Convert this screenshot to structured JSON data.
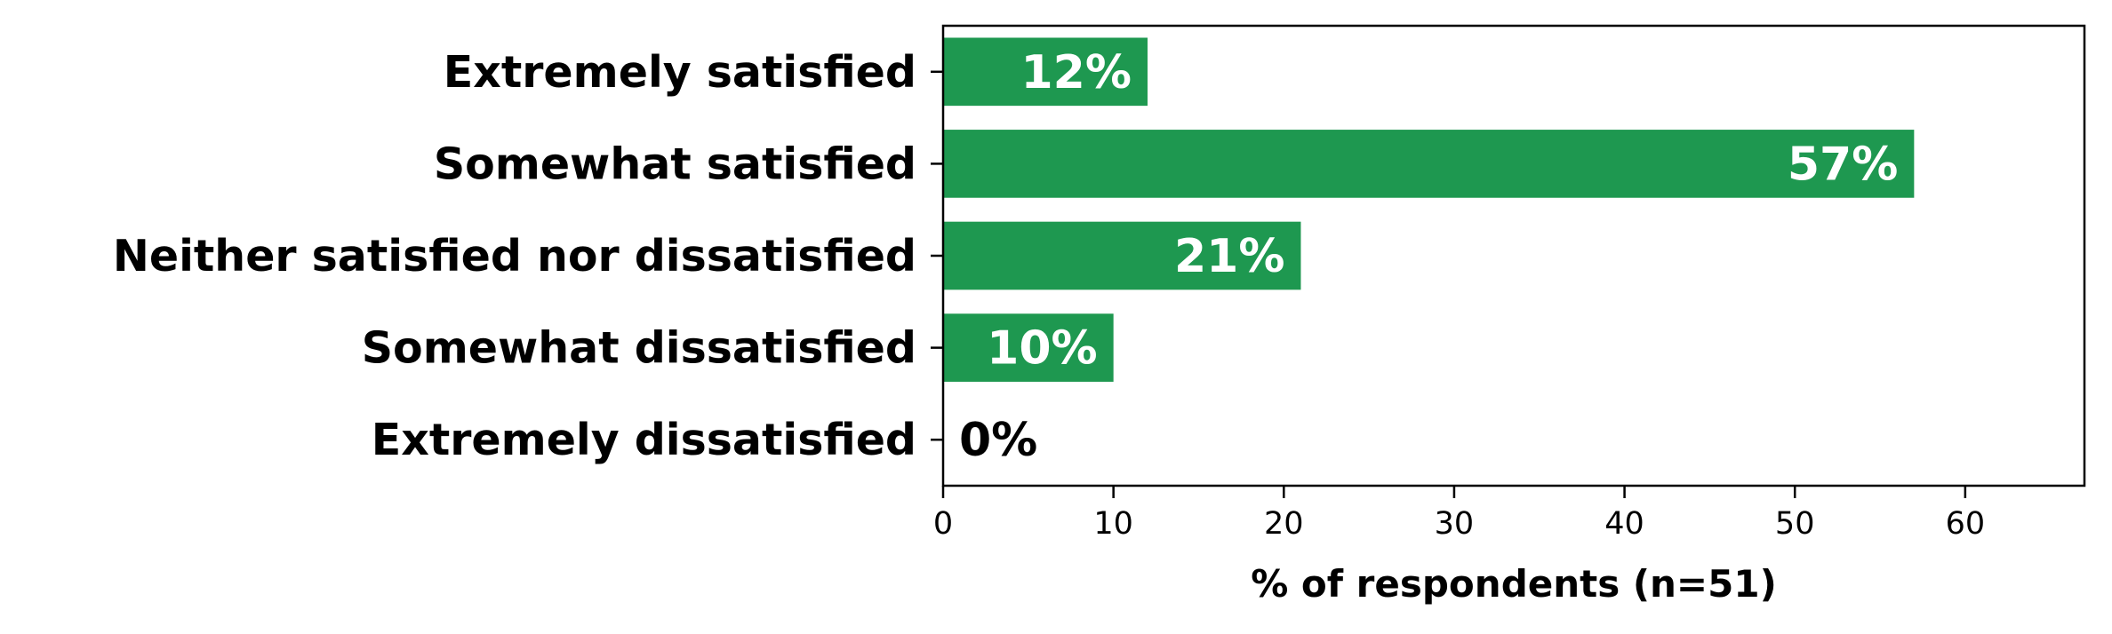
{
  "chart_data": {
    "type": "bar",
    "orientation": "horizontal",
    "categories": [
      "Extremely satisfied",
      "Somewhat satisfied",
      "Neither satisfied nor dissatisfied",
      "Somewhat dissatisfied",
      "Extremely dissatisfied"
    ],
    "values": [
      12,
      57,
      21,
      10,
      0
    ],
    "data_labels": [
      "12%",
      "57%",
      "21%",
      "10%",
      "0%"
    ],
    "xlabel": "% of respondents (n=51)",
    "ylabel": "",
    "xlim": [
      0,
      67
    ],
    "xticks": [
      0,
      10,
      20,
      30,
      40,
      50,
      60
    ],
    "grid": false,
    "bar_color": "#1e9850",
    "label_color_inside": "#ffffff",
    "label_color_outside": "#000000"
  }
}
